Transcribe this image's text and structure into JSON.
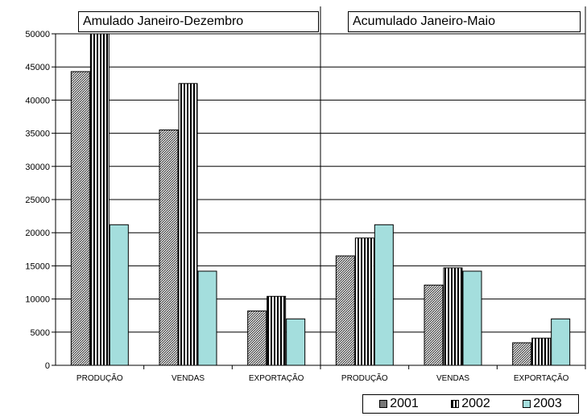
{
  "chart_data": {
    "type": "bar",
    "panels": [
      {
        "title": "Amulado Janeiro-Dezembro",
        "categories": [
          "PRODUÇÃO",
          "VENDAS",
          "EXPORTAÇÃO"
        ],
        "series": [
          {
            "name": "2001",
            "values": [
              44300,
              35500,
              8200
            ]
          },
          {
            "name": "2002",
            "values": [
              50000,
              42500,
              10400
            ]
          },
          {
            "name": "2003",
            "values": [
              21200,
              14200,
              7000
            ]
          }
        ]
      },
      {
        "title": "Acumulado Janeiro-Maio",
        "categories": [
          "PRODUÇÃO",
          "VENDAS",
          "EXPORTAÇÃO"
        ],
        "series": [
          {
            "name": "2001",
            "values": [
              16500,
              12100,
              3400
            ]
          },
          {
            "name": "2002",
            "values": [
              19200,
              14700,
              4100
            ]
          },
          {
            "name": "2003",
            "values": [
              21200,
              14200,
              7000
            ]
          }
        ]
      }
    ],
    "ylim": [
      0,
      50000
    ],
    "yticks": [
      "0",
      "5000",
      "10000",
      "15000",
      "20000",
      "25000",
      "30000",
      "35000",
      "40000",
      "45000",
      "50000"
    ],
    "grid": true,
    "legend": {
      "placement": "bottom-right",
      "entries": [
        "2001",
        "2002",
        "2003"
      ]
    },
    "colors": {
      "2001": "#6e6e6e",
      "2002": "#000000",
      "2003": "#a4dedd"
    }
  }
}
